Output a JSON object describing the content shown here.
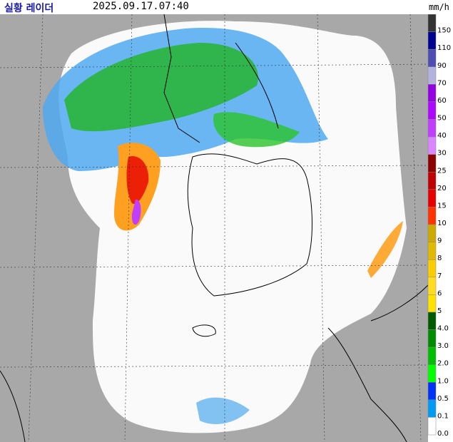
{
  "header": {
    "title": "실황 레이더",
    "time": "2025.09.17.07:40",
    "unit": "mm/h"
  },
  "legend": [
    {
      "label": "150",
      "color": "#333333"
    },
    {
      "label": "110",
      "color": "#000390"
    },
    {
      "label": "90",
      "color": "#4c4eb1"
    },
    {
      "label": "70",
      "color": "#b3b4de"
    },
    {
      "label": "60",
      "color": "#9300e4"
    },
    {
      "label": "50",
      "color": "#ad07ff"
    },
    {
      "label": "40",
      "color": "#c23eff"
    },
    {
      "label": "30",
      "color": "#da87ff"
    },
    {
      "label": "25",
      "color": "#8c0000"
    },
    {
      "label": "20",
      "color": "#be0000"
    },
    {
      "label": "15",
      "color": "#e60000"
    },
    {
      "label": "10",
      "color": "#ff3300"
    },
    {
      "label": "9",
      "color": "#ccaa00"
    },
    {
      "label": "8",
      "color": "#e0b900"
    },
    {
      "label": "7",
      "color": "#f9cd00"
    },
    {
      "label": "6",
      "color": "#ffdc1f"
    },
    {
      "label": "5",
      "color": "#ffe100"
    },
    {
      "label": "4.0",
      "color": "#005a00"
    },
    {
      "label": "3.0",
      "color": "#008c00"
    },
    {
      "label": "2.0",
      "color": "#00be00"
    },
    {
      "label": "1.0",
      "color": "#00ff00"
    },
    {
      "label": "0.5",
      "color": "#0033f5"
    },
    {
      "label": "0.1",
      "color": "#009bf5"
    },
    {
      "label": "0.0",
      "color": "#ffffff"
    }
  ]
}
